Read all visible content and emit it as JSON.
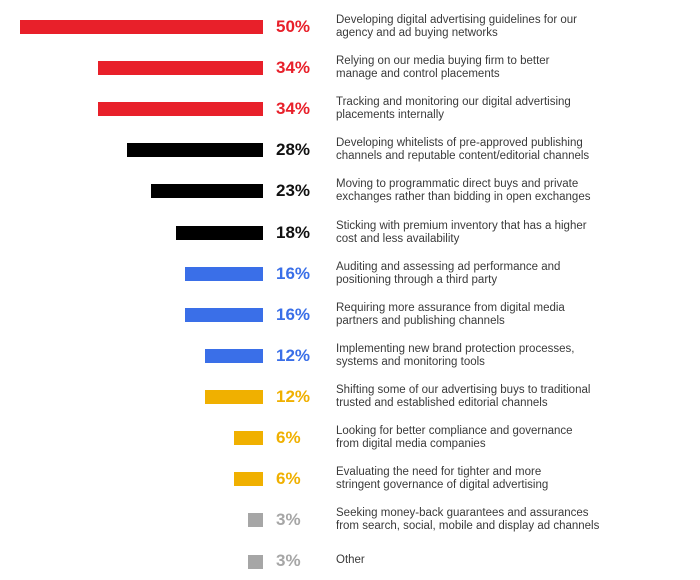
{
  "chart_data": {
    "type": "bar",
    "orientation": "horizontal",
    "bar_alignment": "right",
    "categories": [
      "Developing digital advertising guidelines for our agency and ad buying networks",
      "Relying on our media buying firm to better manage and control placements",
      "Tracking and monitoring our digital advertising placements internally",
      "Developing whitelists of pre-approved publishing channels and reputable content/editorial channels",
      "Moving to programmatic direct buys and private exchanges rather than bidding in open exchanges",
      "Sticking with premium inventory that has a higher cost and less availability",
      "Auditing and assessing ad performance and positioning through a third party",
      "Requiring more assurance from digital media partners and publishing channels",
      "Implementing new brand protection processes, systems and monitoring tools",
      "Shifting some of our advertising buys to traditional trusted and established editorial channels",
      "Looking for better compliance and governance from digital media companies",
      "Evaluating the need for tighter and more stringent governance of digital advertising",
      "Seeking money-back guarantees and assurances from search, social, mobile and display ad channels",
      "Other"
    ],
    "label_lines": [
      [
        "Developing digital advertising guidelines for our",
        "agency and ad buying networks"
      ],
      [
        "Relying on our media buying firm to better",
        "manage and control placements"
      ],
      [
        "Tracking and monitoring our digital advertising",
        "placements internally"
      ],
      [
        "Developing whitelists of pre-approved publishing",
        "channels and reputable content/editorial channels"
      ],
      [
        "Moving to programmatic direct buys and private",
        "exchanges rather than bidding in open exchanges"
      ],
      [
        "Sticking with premium inventory that has a higher",
        "cost and less availability"
      ],
      [
        "Auditing and assessing ad performance and",
        "positioning through a third party"
      ],
      [
        "Requiring more assurance from digital media",
        "partners and publishing channels"
      ],
      [
        "Implementing new brand protection processes,",
        "systems and monitoring tools"
      ],
      [
        "Shifting some of our advertising buys to traditional",
        "trusted and established editorial channels"
      ],
      [
        "Looking for better compliance and governance",
        "from digital media companies"
      ],
      [
        "Evaluating the need for tighter and more",
        "stringent governance of digital advertising"
      ],
      [
        "Seeking money-back guarantees and assurances",
        "from search, social, mobile and display ad channels"
      ],
      [
        "Other"
      ]
    ],
    "values": [
      50,
      34,
      34,
      28,
      23,
      18,
      16,
      16,
      12,
      12,
      6,
      6,
      3,
      3
    ],
    "value_labels": [
      "50%",
      "34%",
      "34%",
      "28%",
      "23%",
      "18%",
      "16%",
      "16%",
      "12%",
      "12%",
      "6%",
      "6%",
      "3%",
      "3%"
    ],
    "bar_colors": [
      "#e8202a",
      "#e8202a",
      "#e8202a",
      "#000000",
      "#000000",
      "#000000",
      "#3a6fe8",
      "#3a6fe8",
      "#3a6fe8",
      "#f0b000",
      "#f0b000",
      "#f0b000",
      "#a6a6a6",
      "#a6a6a6"
    ],
    "value_label_colors": [
      "#e8202a",
      "#e8202a",
      "#e8202a",
      "#111111",
      "#111111",
      "#111111",
      "#3a6fe8",
      "#3a6fe8",
      "#3a6fe8",
      "#f0b000",
      "#f0b000",
      "#f0b000",
      "#a6a6a6",
      "#a6a6a6"
    ],
    "xlim": [
      0,
      50
    ],
    "grid": false,
    "legend": "none"
  }
}
